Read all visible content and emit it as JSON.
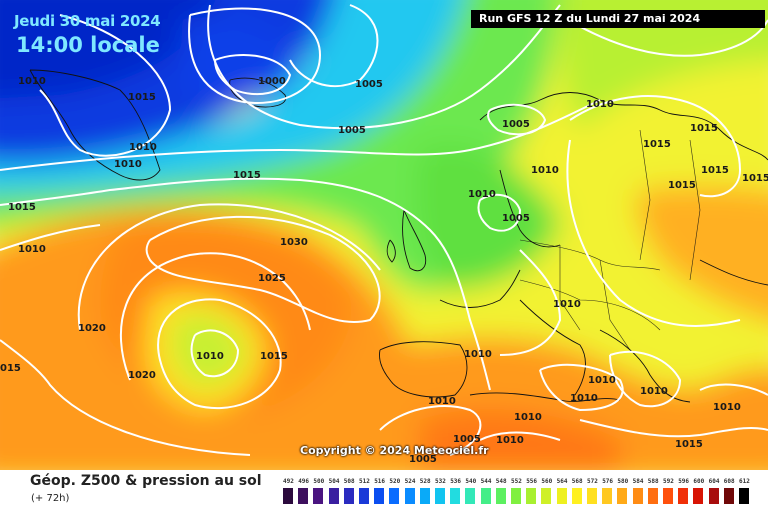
{
  "map": {
    "title_date": "Jeudi 30 mai 2024",
    "title_time": "14:00 locale",
    "run_info": "Run GFS 12 Z du Lundi 27 mai 2024",
    "copyright": "Copyright © 2024 Meteociel.fr",
    "isobar_labels": [
      {
        "id": "l1",
        "text": "1010"
      },
      {
        "id": "l2",
        "text": "1015"
      },
      {
        "id": "l3",
        "text": "1000"
      },
      {
        "id": "l4",
        "text": "1005"
      },
      {
        "id": "l5",
        "text": "1005"
      },
      {
        "id": "l6",
        "text": "1010"
      },
      {
        "id": "l7",
        "text": "1010"
      },
      {
        "id": "l8",
        "text": "1015"
      },
      {
        "id": "l9",
        "text": "1015"
      },
      {
        "id": "l10",
        "text": "1010"
      },
      {
        "id": "l11",
        "text": "1030"
      },
      {
        "id": "l12",
        "text": "1025"
      },
      {
        "id": "l13",
        "text": "1020"
      },
      {
        "id": "l14",
        "text": "1010"
      },
      {
        "id": "l15",
        "text": "1015"
      },
      {
        "id": "l16",
        "text": "1020"
      },
      {
        "id": "l17",
        "text": "015"
      },
      {
        "id": "l18",
        "text": "1005"
      },
      {
        "id": "l19",
        "text": "1010"
      },
      {
        "id": "l20",
        "text": "1010"
      },
      {
        "id": "l21",
        "text": "1005"
      },
      {
        "id": "l22",
        "text": "1010"
      },
      {
        "id": "l23",
        "text": "1015"
      },
      {
        "id": "l24",
        "text": "1015"
      },
      {
        "id": "l25",
        "text": "1015"
      },
      {
        "id": "l26",
        "text": "1015"
      },
      {
        "id": "l27",
        "text": "1015"
      },
      {
        "id": "l28",
        "text": "1010"
      },
      {
        "id": "l29",
        "text": "1010"
      },
      {
        "id": "l30",
        "text": "1010"
      },
      {
        "id": "l31",
        "text": "1010"
      },
      {
        "id": "l32",
        "text": "1010"
      },
      {
        "id": "l33",
        "text": "1010"
      },
      {
        "id": "l34",
        "text": "1010"
      },
      {
        "id": "l35",
        "text": "1005"
      },
      {
        "id": "l36",
        "text": "1005"
      },
      {
        "id": "l37",
        "text": "1010"
      },
      {
        "id": "l38",
        "text": "1015"
      },
      {
        "id": "l39",
        "text": "1010"
      }
    ]
  },
  "footer": {
    "title": "Géop. Z500 & pression au sol",
    "subtitle": "(+ 72h)"
  },
  "legend": {
    "labels": [
      "492",
      "496",
      "500",
      "504",
      "508",
      "512",
      "516",
      "520",
      "524",
      "528",
      "532",
      "536",
      "540",
      "544",
      "548",
      "552",
      "556",
      "560",
      "564",
      "568",
      "572",
      "576",
      "580",
      "584",
      "588",
      "592",
      "596",
      "600",
      "604",
      "608",
      "612"
    ],
    "colors": [
      "#2b0a3d",
      "#3d0f5e",
      "#4a1480",
      "#3a1fa0",
      "#2a2bc0",
      "#1a3ad8",
      "#0b4ef0",
      "#0a6cff",
      "#0a8cff",
      "#0aaaf8",
      "#12c4f0",
      "#22dce0",
      "#33e8b8",
      "#44ee88",
      "#5cf060",
      "#80f040",
      "#a8f030",
      "#cff028",
      "#eef020",
      "#fff020",
      "#ffe020",
      "#ffc820",
      "#ffaa18",
      "#ff8c14",
      "#ff6e10",
      "#ff500c",
      "#f03008",
      "#d81404",
      "#a80c0c",
      "#700808",
      "#000000"
    ]
  }
}
